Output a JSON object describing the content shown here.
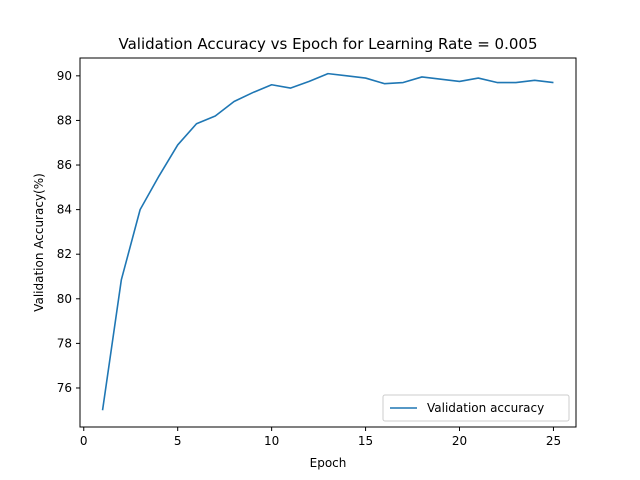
{
  "chart_data": {
    "type": "line",
    "title": "Validation Accuracy vs Epoch for Learning Rate = 0.005",
    "xlabel": "Epoch",
    "ylabel": "Validation Accuracy(%)",
    "xlim": [
      -0.2,
      26.2
    ],
    "ylim": [
      74.25,
      90.8
    ],
    "xticks": [
      0,
      5,
      10,
      15,
      20,
      25
    ],
    "yticks": [
      76,
      78,
      80,
      82,
      84,
      86,
      88,
      90
    ],
    "grid": false,
    "legend": {
      "position": "bottom-right",
      "entries": [
        "Validation accuracy"
      ]
    },
    "series": [
      {
        "name": "Validation accuracy",
        "color": "#1f77b4",
        "x": [
          1,
          2,
          3,
          4,
          5,
          6,
          7,
          8,
          9,
          10,
          11,
          12,
          13,
          14,
          15,
          16,
          17,
          18,
          19,
          20,
          21,
          22,
          23,
          24,
          25
        ],
        "y": [
          75.0,
          80.85,
          84.0,
          85.5,
          86.9,
          87.85,
          88.2,
          88.85,
          89.25,
          89.6,
          89.45,
          89.75,
          90.1,
          90.0,
          89.9,
          89.65,
          89.7,
          89.95,
          89.85,
          89.75,
          89.9,
          89.7,
          89.7,
          89.8,
          89.7
        ]
      }
    ]
  }
}
